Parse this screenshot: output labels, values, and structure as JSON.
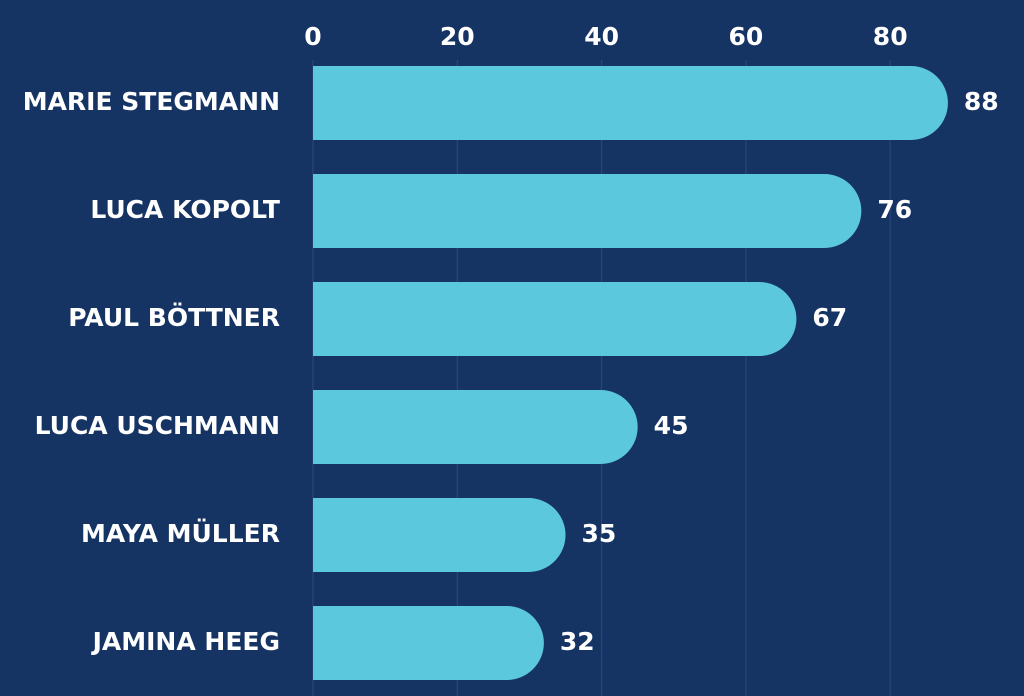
{
  "chart_data": {
    "type": "bar",
    "orientation": "horizontal",
    "title": "",
    "xlabel": "",
    "ylabel": "",
    "categories": [
      "MARIE STEGMANN",
      "LUCA KOPOLT",
      "PAUL BÖTTNER",
      "LUCA USCHMANN",
      "MAYA MÜLLER",
      "JAMINA HEEG"
    ],
    "values": [
      88,
      76,
      67,
      45,
      35,
      32
    ],
    "xlim": [
      0,
      88
    ],
    "xticks": [
      0,
      20,
      40,
      60,
      80
    ],
    "tick_position": "top",
    "grid": true,
    "legend": "none",
    "colors": {
      "background": "#163463",
      "bar": "#5bc8de",
      "grid": "#2a4a7a",
      "text": "#ffffff"
    }
  }
}
